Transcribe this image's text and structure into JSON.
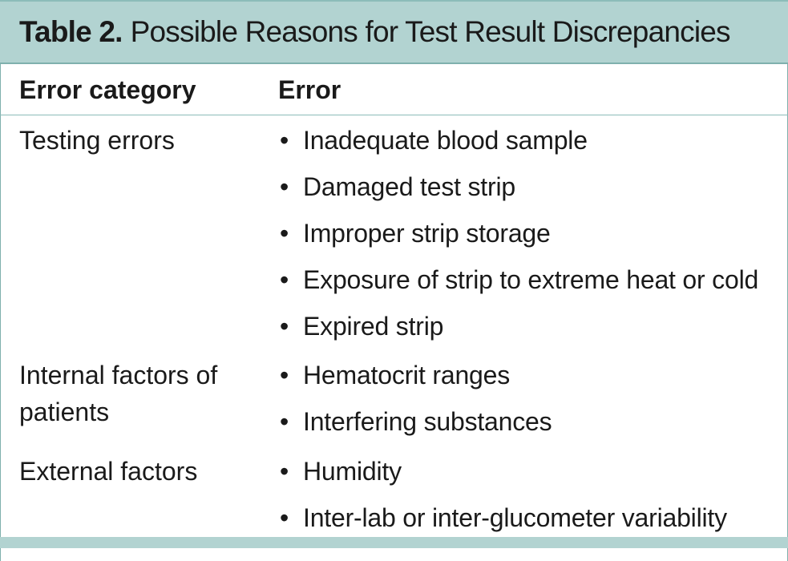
{
  "table": {
    "label": "Table 2.",
    "title": "Possible Reasons for Test Result Discrepancies",
    "headers": [
      "Error category",
      "Error"
    ],
    "rows": [
      {
        "category": "Testing errors",
        "errors": [
          "Inadequate blood sample",
          "Damaged test strip",
          "Improper strip storage",
          "Exposure of strip to extreme heat or cold",
          "Expired strip"
        ]
      },
      {
        "category": "Internal factors of patients",
        "errors": [
          "Hematocrit ranges",
          "Interfering substances"
        ]
      },
      {
        "category": "External factors",
        "errors": [
          "Humidity",
          "Inter-lab or inter-glucometer variability"
        ]
      }
    ],
    "colors": {
      "title_bar": "#b2d3d1",
      "rule": "#8cbcb9",
      "text": "#1a1a1a"
    }
  }
}
